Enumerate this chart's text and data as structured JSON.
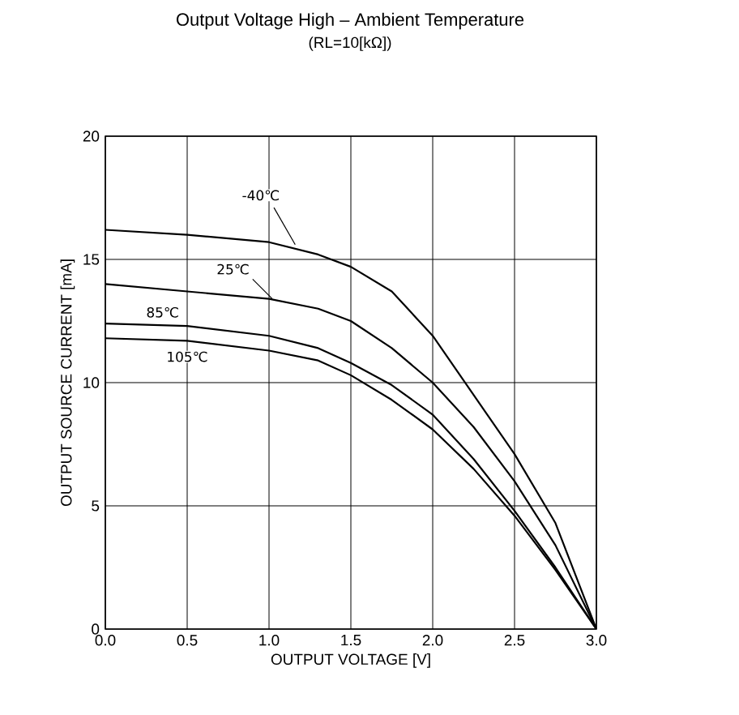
{
  "chart_data": {
    "type": "line",
    "title": "Output Voltage High – Ambient Temperature",
    "subtitle": "(RL=10[kΩ])",
    "xlabel": "OUTPUT VOLTAGE [V]",
    "ylabel": "OUTPUT SOURCE CURRENT [mA]",
    "x": [
      0,
      0.5,
      1.0,
      1.3,
      1.5,
      1.75,
      2.0,
      2.25,
      2.5,
      2.75,
      3.0
    ],
    "series": [
      {
        "name": "-40℃",
        "color": "#000000",
        "values": [
          16.2,
          16.0,
          15.7,
          15.2,
          14.7,
          13.7,
          11.9,
          9.5,
          7.1,
          4.3,
          0
        ]
      },
      {
        "name": "25℃",
        "color": "#000000",
        "values": [
          14.0,
          13.7,
          13.4,
          13.0,
          12.5,
          11.4,
          10.0,
          8.2,
          6.0,
          3.4,
          0
        ]
      },
      {
        "name": "85℃",
        "color": "#000000",
        "values": [
          12.4,
          12.3,
          11.9,
          11.4,
          10.8,
          9.9,
          8.7,
          6.9,
          4.8,
          2.5,
          0
        ]
      },
      {
        "name": "105℃",
        "color": "#000000",
        "values": [
          11.8,
          11.7,
          11.3,
          10.9,
          10.3,
          9.3,
          8.1,
          6.5,
          4.6,
          2.4,
          0
        ]
      }
    ],
    "xlim": [
      0,
      3.0
    ],
    "ylim": [
      0,
      20
    ],
    "xticks": [
      {
        "value": 0,
        "label": "0.0"
      },
      0.5,
      {
        "value": 1,
        "label": "1.0"
      },
      1.5,
      {
        "value": 2,
        "label": "2.0"
      },
      2.5,
      {
        "value": 3,
        "label": "3.0"
      }
    ],
    "yticks": [
      0,
      5,
      10,
      15,
      20
    ],
    "grid": true,
    "legend": false,
    "line_style": "solid",
    "marker": "none"
  }
}
